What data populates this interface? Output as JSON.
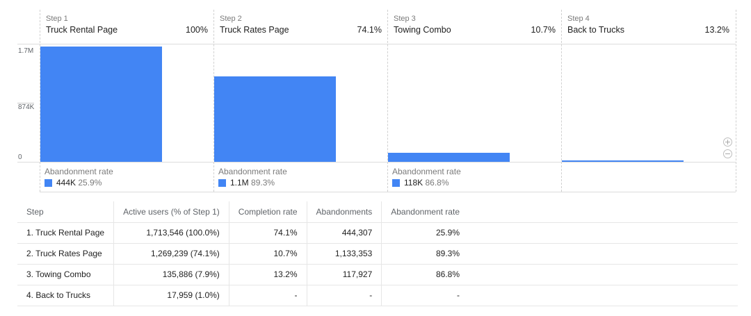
{
  "chart_data": {
    "type": "bar",
    "title": "",
    "xlabel": "",
    "ylabel": "",
    "ylim": [
      0,
      1750000
    ],
    "y_ticks": [
      {
        "value": 0,
        "label": "0"
      },
      {
        "value": 874000,
        "label": "874K"
      },
      {
        "value": 1713546,
        "label": "1.7M"
      }
    ],
    "categories": [
      "Truck Rental Page",
      "Truck Rates Page",
      "Towing Combo",
      "Back to Trucks"
    ],
    "values": [
      1713546,
      1269239,
      135886,
      17959
    ],
    "steps": [
      {
        "step_label": "Step 1",
        "name": "Truck Rental Page",
        "percent": "100%",
        "abandonment_label": "Abandonment rate",
        "abandon_count": "444K",
        "abandon_rate": "25.9%"
      },
      {
        "step_label": "Step 2",
        "name": "Truck Rates Page",
        "percent": "74.1%",
        "abandonment_label": "Abandonment rate",
        "abandon_count": "1.1M",
        "abandon_rate": "89.3%"
      },
      {
        "step_label": "Step 3",
        "name": "Towing Combo",
        "percent": "10.7%",
        "abandonment_label": "Abandonment rate",
        "abandon_count": "118K",
        "abandon_rate": "86.8%"
      },
      {
        "step_label": "Step 4",
        "name": "Back to Trucks",
        "percent": "13.2%",
        "abandonment_label": "",
        "abandon_count": "",
        "abandon_rate": ""
      }
    ],
    "bar_color": "#4285f4",
    "grid": false,
    "legend": "none"
  },
  "zoom": {
    "in_icon": "zoom-in-icon",
    "out_icon": "zoom-out-icon",
    "in_glyph": "+",
    "out_glyph": "−"
  },
  "table": {
    "headers": [
      "Step",
      "Active users (% of Step 1)",
      "Completion rate",
      "Abandonments",
      "Abandonment rate"
    ],
    "rows": [
      [
        "1. Truck Rental Page",
        "1,713,546 (100.0%)",
        "74.1%",
        "444,307",
        "25.9%"
      ],
      [
        "2. Truck Rates Page",
        "1,269,239 (74.1%)",
        "10.7%",
        "1,133,353",
        "89.3%"
      ],
      [
        "3. Towing Combo",
        "135,886 (7.9%)",
        "13.2%",
        "117,927",
        "86.8%"
      ],
      [
        "4. Back to Trucks",
        "17,959 (1.0%)",
        "-",
        "-",
        "-"
      ]
    ]
  }
}
